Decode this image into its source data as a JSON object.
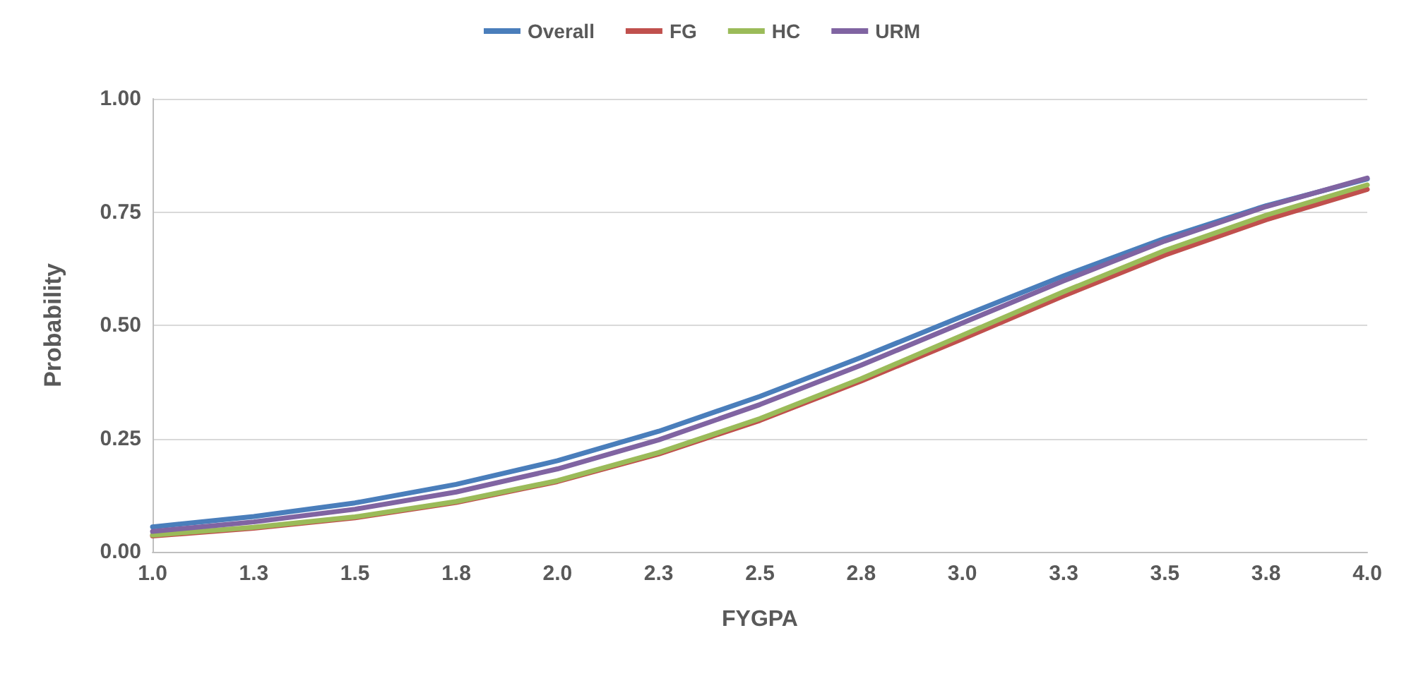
{
  "chart_data": {
    "type": "line",
    "xlabel": "FYGPA",
    "ylabel": "Probability",
    "x": [
      1.0,
      1.25,
      1.5,
      1.75,
      2.0,
      2.25,
      2.5,
      2.75,
      3.0,
      3.25,
      3.5,
      3.75,
      4.0
    ],
    "series": [
      {
        "name": "Overall",
        "color": "#4a7ebb",
        "values": [
          0.055,
          0.078,
          0.108,
          0.149,
          0.201,
          0.266,
          0.343,
          0.429,
          0.52,
          0.609,
          0.692,
          0.764,
          0.823
        ]
      },
      {
        "name": "FG",
        "color": "#c0504d",
        "values": [
          0.035,
          0.052,
          0.075,
          0.109,
          0.155,
          0.216,
          0.29,
          0.377,
          0.47,
          0.565,
          0.655,
          0.733,
          0.8
        ]
      },
      {
        "name": "HC",
        "color": "#9bbb59",
        "values": [
          0.037,
          0.054,
          0.077,
          0.111,
          0.157,
          0.219,
          0.294,
          0.382,
          0.478,
          0.574,
          0.665,
          0.743,
          0.81
        ]
      },
      {
        "name": "URM",
        "color": "#8064a2",
        "values": [
          0.045,
          0.066,
          0.094,
          0.132,
          0.183,
          0.247,
          0.325,
          0.412,
          0.505,
          0.598,
          0.686,
          0.762,
          0.825
        ]
      }
    ],
    "xlim": [
      1.0,
      4.0
    ],
    "xticks": [
      {
        "value": 1.0,
        "label": "1.0"
      },
      {
        "value": 1.25,
        "label": "1.3"
      },
      {
        "value": 1.5,
        "label": "1.5"
      },
      {
        "value": 1.75,
        "label": "1.8"
      },
      {
        "value": 2.0,
        "label": "2.0"
      },
      {
        "value": 2.25,
        "label": "2.3"
      },
      {
        "value": 2.5,
        "label": "2.5"
      },
      {
        "value": 2.75,
        "label": "2.8"
      },
      {
        "value": 3.0,
        "label": "3.0"
      },
      {
        "value": 3.25,
        "label": "3.3"
      },
      {
        "value": 3.5,
        "label": "3.5"
      },
      {
        "value": 3.75,
        "label": "3.8"
      },
      {
        "value": 4.0,
        "label": "4.0"
      }
    ],
    "ylim": [
      0,
      1
    ],
    "yticks": [
      {
        "value": 0,
        "label": "0.00"
      },
      {
        "value": 0.25,
        "label": "0.25"
      },
      {
        "value": 0.5,
        "label": "0.50"
      },
      {
        "value": 0.75,
        "label": "0.75"
      },
      {
        "value": 1,
        "label": "1.00"
      }
    ],
    "grid": "y",
    "legend": "top",
    "marker": "none",
    "line_style": "solid"
  }
}
